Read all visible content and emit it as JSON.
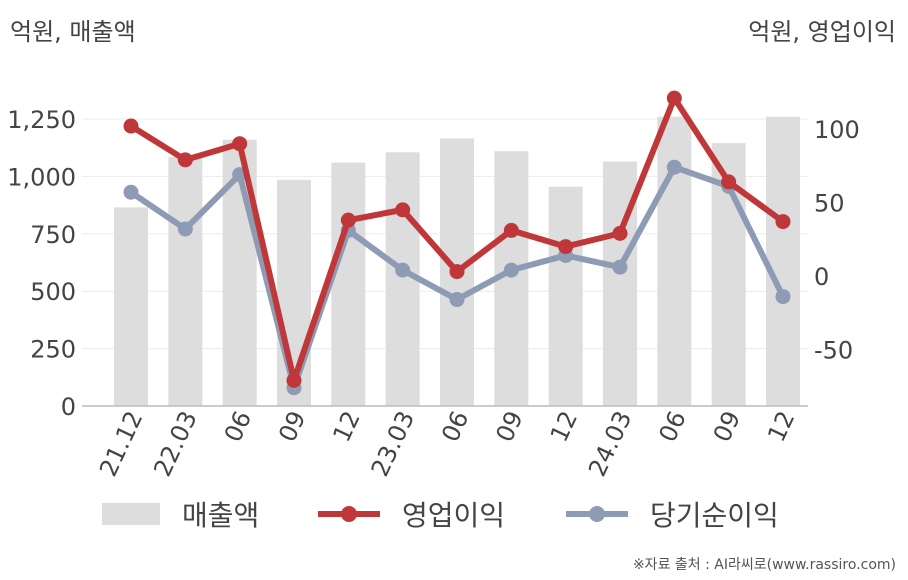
{
  "units": {
    "left": "억원, 매출액",
    "right": "억원, 영업이익"
  },
  "chart_data": {
    "type": "bar+line",
    "categories": [
      "21.12",
      "22.03",
      "06",
      "09",
      "12",
      "23.03",
      "06",
      "09",
      "12",
      "24.03",
      "06",
      "09",
      "12"
    ],
    "series": [
      {
        "name": "매출액",
        "kind": "bar",
        "axis": "left",
        "color": "#dddddd",
        "values": [
          865,
          1085,
          1160,
          985,
          1060,
          1105,
          1165,
          1110,
          955,
          1065,
          1260,
          1145,
          1260
        ]
      },
      {
        "name": "영업이익",
        "kind": "line",
        "axis": "right",
        "color": "#c0373a",
        "values": [
          102,
          79,
          90,
          -71,
          38,
          45,
          3,
          31,
          20,
          29,
          121,
          64,
          37
        ]
      },
      {
        "name": "당기순이익",
        "kind": "line",
        "axis": "right",
        "color": "#8e9bb5",
        "values": [
          57,
          32,
          69,
          -76,
          31,
          4,
          -16,
          4,
          14,
          6,
          74,
          61,
          -14
        ]
      }
    ],
    "y_left": {
      "min": 0,
      "max": 1250,
      "ticks": [
        "0",
        "250",
        "500",
        "750",
        "1,000",
        "1,250"
      ],
      "tick_values": [
        0,
        250,
        500,
        750,
        1000,
        1250
      ]
    },
    "y_right": {
      "ticks": [
        "-50",
        "0",
        "50",
        "100"
      ],
      "tick_values": [
        -50,
        0,
        50,
        100
      ]
    },
    "grid": true,
    "legend_position": "bottom"
  },
  "legend": [
    {
      "label": "매출액"
    },
    {
      "label": "영업이익"
    },
    {
      "label": "당기순이익"
    }
  ],
  "source": "※자료 출처 : AI라씨로(www.rassiro.com)"
}
